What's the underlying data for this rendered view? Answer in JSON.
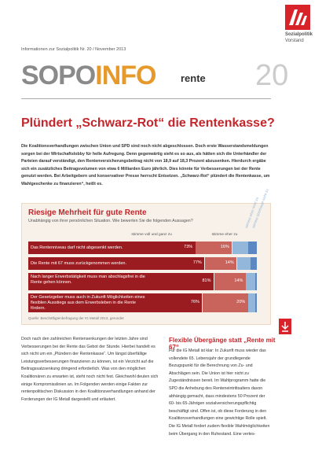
{
  "header": {
    "issue_line": "Informationen zur Sozialpolitik Nr. 20 / November 2013",
    "logo_line1": "Sozialpolitik",
    "logo_line2": "Vorstand",
    "brand_gray": "SOPO",
    "brand_color": "INFO",
    "topic": "rente",
    "number": "20"
  },
  "article": {
    "headline": "Plündert „Schwarz-Rot“ die Rentenkasse?",
    "intro": "Die Koalitionsverhandlungen zwischen Union und SPD sind noch nicht abgeschlossen. Doch erste Wasserstandsmeldungen sorgen bei der Wirtschaftslobby für helle Aufregung. Denn gegenwärtig sieht es so aus, als hätten sich die Unterhändler der Parteien darauf verständigt, den Rentenversicherungsbeitrag nicht von 18,9 auf 18,3 Prozent abzusenken. Hierdurch ergäbe sich ein zusätzliches Beitragsvolumen von etwa 6 Milliarden Euro jährlich. Dies könnte für Verbesserungen bei der Rente genutzt werden. Bei Arbeitgebern und konservativer Presse herrscht Entsetzen. „Schwarz-Rot“ plündert die Rentenkasse, um Wahlgeschenke zu finanzieren“, heißt es."
  },
  "chart_data": {
    "type": "stacked-bar",
    "title": "Riesige Mehrheit für gute Rente",
    "subtitle": "Unabhängig von ihrer persönlichen Situation. Wie bewerten Sie die folgenden Aussagen?",
    "categories": [
      "Das Rentenniveau darf nicht abgesenkt werden.",
      "Die Rente mit 67 muss zurückgenommen werden.",
      "Nach langer Erwerbstätigkeit muss man abschlagsfrei in die Rente gehen können.",
      "Der Gesetzgeber muss auch in Zukunft Möglichkeiten eines flexiblen Ausstiegs aus dem Erwerbsleben in die Rente fördern."
    ],
    "series": [
      {
        "name": "stimme voll und ganz zu",
        "color": "#9b1c20",
        "values": [
          73,
          77,
          81,
          76
        ],
        "value_labels": [
          "73%",
          "77%",
          "81%",
          "76%"
        ]
      },
      {
        "name": "stimme eher zu",
        "color": "#c9645c",
        "values": [
          16,
          14,
          14,
          20
        ],
        "value_labels": [
          "16%",
          "14%",
          "14%",
          "20%"
        ]
      },
      {
        "name": "stimme eher nicht zu",
        "color": "#93b7da",
        "values": [
          7,
          6,
          4,
          3
        ]
      },
      {
        "name": "stimme überhaupt nicht zu",
        "color": "#5b87c2",
        "values": [
          4,
          3,
          1,
          1
        ]
      }
    ],
    "xlim": [
      0,
      100
    ],
    "source": "Quelle: Beschäftigtenbefragung der IG Metall 2013, gerundet"
  },
  "columns": {
    "left": "Doch nach den zahlreichen Rentensenkungen der letzten Jahre sind Verbesserungen bei der Rente das Gebot der Stunde. Hierbei handelt es sich nicht um ein „Plündern der Rentenkasse“. Um längst überfällige Leistungsverbesserungen finanzieren zu können, ist ein Verzicht auf die Beitragssatzsenkung dringend erforderlich. Was von den möglichen Koalitionären zu erwarten ist, steht noch nicht fest. Gleichwohl deuten sich einige Kompromisslinien an. Im Folgenden werden einige Fakten zur rentenpolitischen Diskussion in den Koalitionsverhandlungen anhand der Forderungen der IG Metall dargestellt und erläutert.",
    "right_heading": "Flexible Übergänge statt „Rente mit 67“",
    "right": "Für die IG Metall ist klar: In Zukunft muss wieder das vollendete 65. Lebensjahr der grundlegende Bezugspunkt für die Berechnung von Zu- und Abschlägen sein. Die Union ist hier nicht zu Zugeständnissen bereit. Im Wahlprogramm hatte die SPD die Anhebung des Renteneintrittsalters davon abhängig gemacht, dass mindestens 50 Prozent der 60- bis 65-Jährigen sozialversicherungspflichtig beschäftigt sind. Offen ist, ob diese Forderung in den Koalitionsverhandlungen eine gewichtige Rolle spielt. Die IG Metall fordert zudem flexible Wahlmöglichkeiten beim Übergang in den Ruhestand. Eine vertes-"
  }
}
